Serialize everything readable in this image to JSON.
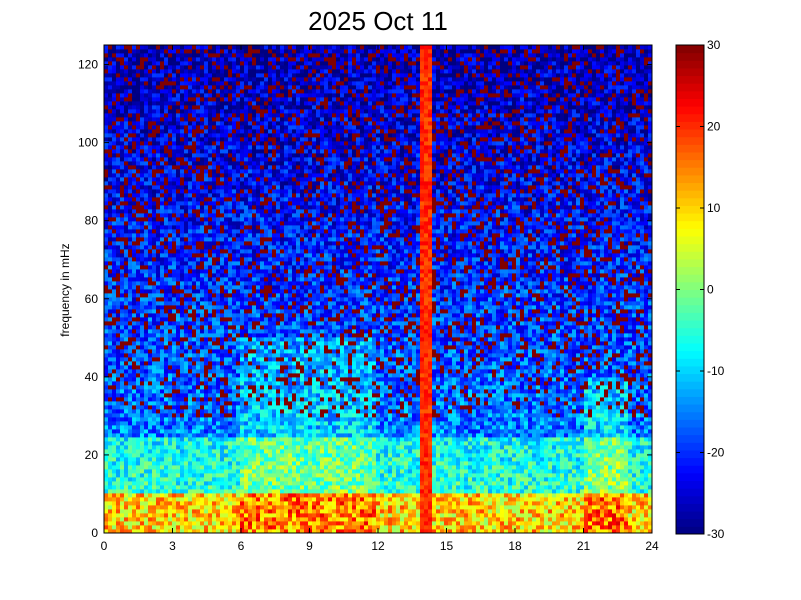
{
  "chart_data": {
    "type": "heatmap",
    "title": "2025 Oct 11",
    "xlabel": "",
    "ylabel": "frequency in mHz",
    "xlim": [
      0,
      24
    ],
    "ylim": [
      0,
      125
    ],
    "xticks": [
      0,
      3,
      6,
      9,
      12,
      15,
      18,
      21,
      24
    ],
    "yticks": [
      0,
      20,
      40,
      60,
      80,
      100,
      120
    ],
    "colorbar": {
      "range": [
        -30,
        30
      ],
      "ticks": [
        30,
        20,
        10,
        0,
        -10,
        -20,
        -30
      ],
      "colormap": "jet"
    },
    "features": {
      "vertical_band_x": 14.1,
      "vertical_band_value": 20,
      "low_frequency_band_top": 10,
      "low_frequency_band_value": 10
    }
  }
}
